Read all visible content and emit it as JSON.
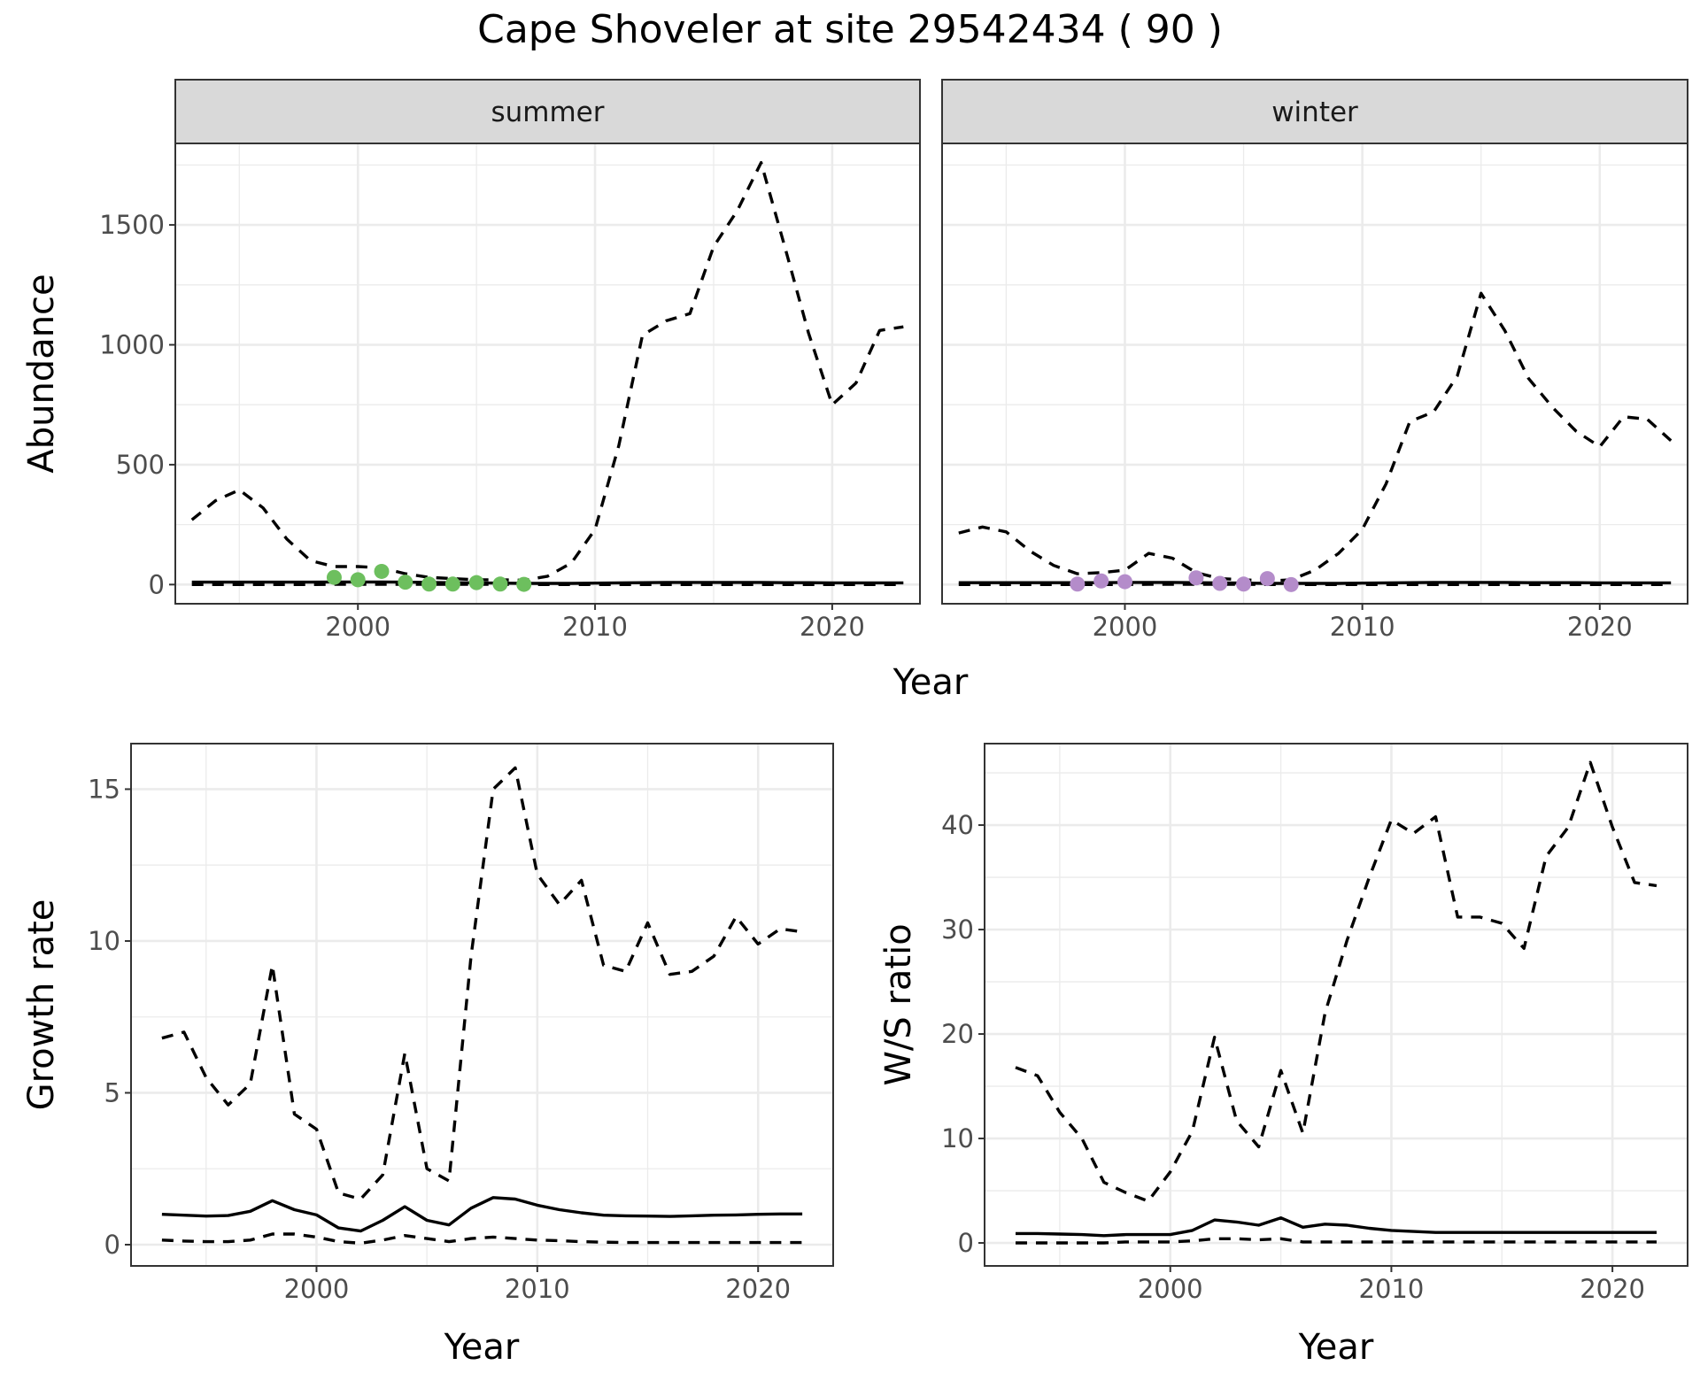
{
  "title": "Cape Shoveler at site 29542434 ( 90 )",
  "colors": {
    "summer_points": "#6dbf5e",
    "winter_points": "#b48cca",
    "lines": "#000000",
    "strip": "#d9d9d9"
  },
  "chart_data": [
    {
      "type": "line",
      "facet": "summer",
      "xlabel": "Year",
      "ylabel": "Abundance",
      "xlim": [
        1992.3,
        2023.7
      ],
      "ylim": [
        -80,
        1840
      ],
      "x_ticks": [
        2000,
        2010,
        2020
      ],
      "y_ticks": [
        0,
        500,
        1000,
        1500
      ],
      "grid": true,
      "x": [
        1993,
        1994,
        1995,
        1996,
        1997,
        1998,
        1999,
        2000,
        2001,
        2002,
        2003,
        2004,
        2005,
        2006,
        2007,
        2008,
        2009,
        2010,
        2011,
        2012,
        2013,
        2014,
        2015,
        2016,
        2017,
        2018,
        2019,
        2020,
        2021,
        2022,
        2023
      ],
      "series": [
        {
          "style": "dashed",
          "values": [
            270,
            350,
            395,
            320,
            190,
            100,
            75,
            75,
            70,
            45,
            30,
            25,
            20,
            20,
            18,
            35,
            90,
            230,
            580,
            1040,
            1100,
            1130,
            1410,
            1560,
            1760,
            1410,
            1050,
            750,
            840,
            1060,
            1075
          ]
        },
        {
          "style": "solid",
          "values": [
            10,
            10,
            10,
            10,
            10,
            10,
            11,
            11,
            11,
            10,
            9,
            8,
            7,
            6,
            5,
            5,
            5,
            6,
            7,
            8,
            9,
            9,
            9,
            9,
            9,
            8,
            8,
            7,
            7,
            7,
            7
          ]
        },
        {
          "style": "dashed",
          "values": [
            0,
            0,
            0,
            0,
            0,
            0,
            1,
            1,
            1,
            1,
            1,
            1,
            1,
            1,
            0,
            0,
            0,
            0,
            0,
            0,
            0,
            0,
            0,
            0,
            0,
            0,
            0,
            0,
            0,
            0,
            0
          ]
        }
      ],
      "points": {
        "x": [
          1999,
          2000,
          2001,
          2002,
          2003,
          2004,
          2005,
          2006,
          2007
        ],
        "y": [
          30,
          20,
          55,
          10,
          2,
          2,
          8,
          2,
          1
        ]
      }
    },
    {
      "type": "line",
      "facet": "winter",
      "xlabel": "Year",
      "ylabel": "Abundance",
      "xlim": [
        1992.3,
        2023.7
      ],
      "ylim": [
        -80,
        1840
      ],
      "x_ticks": [
        2000,
        2010,
        2020
      ],
      "y_ticks": [
        0,
        500,
        1000,
        1500
      ],
      "grid": true,
      "x": [
        1993,
        1994,
        1995,
        1996,
        1997,
        1998,
        1999,
        2000,
        2001,
        2002,
        2003,
        2004,
        2005,
        2006,
        2007,
        2008,
        2009,
        2010,
        2011,
        2012,
        2013,
        2014,
        2015,
        2016,
        2017,
        2018,
        2019,
        2020,
        2021,
        2022,
        2023
      ],
      "series": [
        {
          "style": "dashed",
          "values": [
            215,
            240,
            220,
            140,
            80,
            45,
            50,
            60,
            130,
            110,
            50,
            25,
            20,
            15,
            20,
            60,
            130,
            230,
            420,
            680,
            720,
            870,
            1215,
            1060,
            860,
            740,
            640,
            575,
            700,
            690,
            600
          ]
        },
        {
          "style": "solid",
          "values": [
            8,
            8,
            8,
            8,
            8,
            8,
            8,
            9,
            9,
            9,
            8,
            7,
            6,
            5,
            5,
            5,
            5,
            6,
            7,
            8,
            9,
            9,
            9,
            9,
            8,
            8,
            8,
            7,
            7,
            7,
            7
          ]
        },
        {
          "style": "dashed",
          "values": [
            0,
            0,
            0,
            0,
            0,
            0,
            0,
            0,
            1,
            1,
            1,
            1,
            1,
            0,
            0,
            0,
            0,
            0,
            0,
            0,
            0,
            0,
            0,
            0,
            0,
            0,
            0,
            0,
            0,
            0,
            0
          ]
        }
      ],
      "points": {
        "x": [
          1998,
          1999,
          2000,
          2003,
          2004,
          2005,
          2006,
          2007
        ],
        "y": [
          2,
          15,
          12,
          28,
          5,
          2,
          25,
          0
        ]
      }
    },
    {
      "type": "line",
      "xlabel": "Year",
      "ylabel": "Growth rate",
      "xlim": [
        1991.6,
        2023.4
      ],
      "ylim": [
        -0.7,
        16.5
      ],
      "x_ticks": [
        2000,
        2010,
        2020
      ],
      "y_ticks": [
        0,
        5,
        10,
        15
      ],
      "grid": true,
      "x": [
        1993,
        1994,
        1995,
        1996,
        1997,
        1998,
        1999,
        2000,
        2001,
        2002,
        2003,
        2004,
        2005,
        2006,
        2007,
        2008,
        2009,
        2010,
        2011,
        2012,
        2013,
        2014,
        2015,
        2016,
        2017,
        2018,
        2019,
        2020,
        2021,
        2022
      ],
      "series": [
        {
          "style": "dashed",
          "values": [
            6.8,
            7.0,
            5.5,
            4.6,
            5.3,
            9.2,
            4.3,
            3.8,
            1.7,
            1.5,
            2.3,
            6.3,
            2.5,
            2.1,
            9.5,
            15.0,
            15.7,
            12.2,
            11.2,
            12.0,
            9.2,
            9.0,
            10.6,
            8.9,
            9.0,
            9.5,
            10.8,
            9.9,
            10.4,
            10.3
          ]
        },
        {
          "style": "solid",
          "values": [
            1.0,
            0.97,
            0.94,
            0.96,
            1.1,
            1.45,
            1.15,
            0.98,
            0.55,
            0.45,
            0.8,
            1.25,
            0.8,
            0.65,
            1.2,
            1.55,
            1.5,
            1.3,
            1.15,
            1.05,
            0.97,
            0.95,
            0.94,
            0.93,
            0.95,
            0.97,
            0.98,
            1.0,
            1.01,
            1.01
          ]
        },
        {
          "style": "dashed",
          "values": [
            0.15,
            0.12,
            0.1,
            0.1,
            0.15,
            0.35,
            0.35,
            0.25,
            0.1,
            0.05,
            0.15,
            0.3,
            0.2,
            0.1,
            0.2,
            0.25,
            0.2,
            0.15,
            0.13,
            0.1,
            0.08,
            0.07,
            0.07,
            0.07,
            0.07,
            0.07,
            0.07,
            0.07,
            0.07,
            0.07
          ]
        }
      ]
    },
    {
      "type": "line",
      "xlabel": "Year",
      "ylabel": "W/S ratio",
      "xlim": [
        1991.6,
        2023.4
      ],
      "ylim": [
        -2.2,
        47.8
      ],
      "x_ticks": [
        2000,
        2010,
        2020
      ],
      "y_ticks": [
        0,
        10,
        20,
        30,
        40
      ],
      "grid": true,
      "x": [
        1993,
        1994,
        1995,
        1996,
        1997,
        1998,
        1999,
        2000,
        2001,
        2002,
        2003,
        2004,
        2005,
        2006,
        2007,
        2008,
        2009,
        2010,
        2011,
        2012,
        2013,
        2014,
        2015,
        2016,
        2017,
        2018,
        2019,
        2020,
        2021,
        2022
      ],
      "series": [
        {
          "style": "dashed",
          "values": [
            16.8,
            16.0,
            12.5,
            10.0,
            5.8,
            4.8,
            4.0,
            6.8,
            10.7,
            19.7,
            11.7,
            9.2,
            16.5,
            10.5,
            22.0,
            29.0,
            35.0,
            40.5,
            39.2,
            40.8,
            31.2,
            31.2,
            30.6,
            28.2,
            37.0,
            39.8,
            46.0,
            39.8,
            34.5,
            34.2
          ]
        },
        {
          "style": "solid",
          "values": [
            0.9,
            0.9,
            0.85,
            0.8,
            0.7,
            0.8,
            0.8,
            0.8,
            1.2,
            2.2,
            2.0,
            1.7,
            2.4,
            1.5,
            1.8,
            1.7,
            1.4,
            1.2,
            1.1,
            1.0,
            1.0,
            1.0,
            1.0,
            1.0,
            1.0,
            1.0,
            1.0,
            1.0,
            1.0,
            1.0
          ]
        },
        {
          "style": "dashed",
          "values": [
            0,
            0,
            0,
            0,
            0,
            0.1,
            0.1,
            0.1,
            0.2,
            0.4,
            0.4,
            0.3,
            0.4,
            0.1,
            0.1,
            0.1,
            0.1,
            0.1,
            0.1,
            0.1,
            0.1,
            0.1,
            0.1,
            0.1,
            0.1,
            0.1,
            0.1,
            0.1,
            0.1,
            0.1
          ]
        }
      ]
    }
  ]
}
